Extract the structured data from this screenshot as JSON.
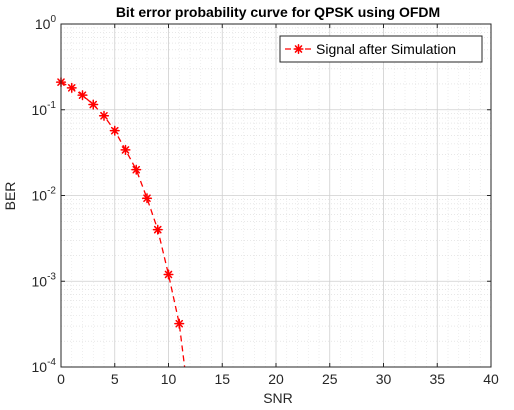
{
  "chart_data": {
    "type": "line",
    "title": "Bit error probability curve for QPSK using OFDM",
    "xlabel": "SNR",
    "ylabel": "BER",
    "xlim": [
      0,
      40
    ],
    "ylim": [
      0.0001,
      1
    ],
    "yscale": "log",
    "grid": true,
    "minor_grid": true,
    "x_ticks": [
      0,
      5,
      10,
      15,
      20,
      25,
      30,
      35,
      40
    ],
    "y_ticks": [
      {
        "base": "10",
        "exp": "-4"
      },
      {
        "base": "10",
        "exp": "-3"
      },
      {
        "base": "10",
        "exp": "-2"
      },
      {
        "base": "10",
        "exp": "-1"
      },
      {
        "base": "10",
        "exp": "0"
      }
    ],
    "legend_position": "top-right",
    "series": [
      {
        "name": "Signal after Simulation",
        "color": "#ff0000",
        "line_style": "dashed",
        "marker": "asterisk",
        "x": [
          0,
          1,
          2,
          3,
          4,
          5,
          6,
          7,
          8,
          9,
          10,
          11
        ],
        "y": [
          0.21,
          0.18,
          0.148,
          0.115,
          0.085,
          0.057,
          0.034,
          0.02,
          0.0093,
          0.004,
          0.0012,
          0.00032
        ],
        "line_extends_to": [
          11.5,
          0.0001
        ]
      }
    ]
  }
}
